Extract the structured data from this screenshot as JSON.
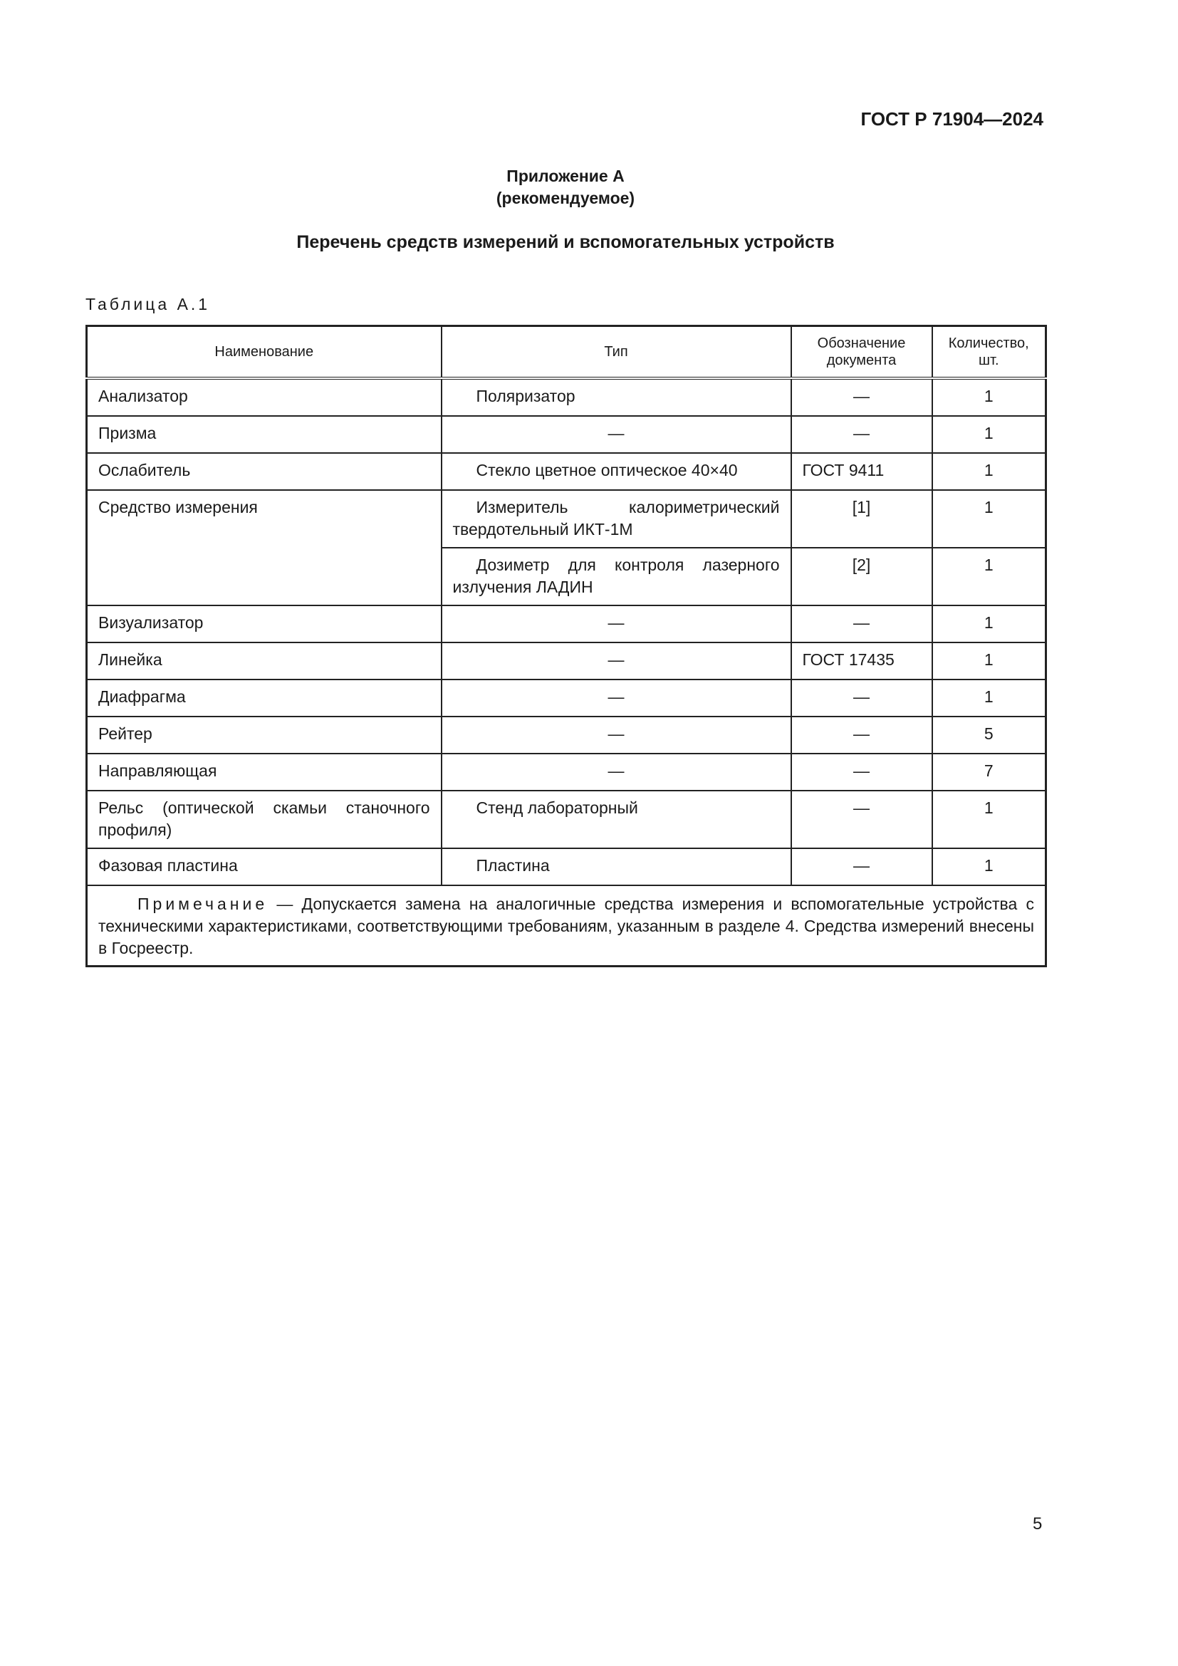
{
  "header": {
    "doc_id": "ГОСТ Р 71904—2024"
  },
  "appendix": {
    "title": "Приложение А",
    "status": "(рекомендуемое)"
  },
  "section_title": "Перечень средств измерений и вспомогательных устройств",
  "table": {
    "caption": "Таблица А.1",
    "columns": [
      "Наименование",
      "Тип",
      "Обозначение документа",
      "Количество, шт."
    ],
    "rows": [
      {
        "name": "Анализатор",
        "type": "Поляризатор",
        "doc": "—",
        "qty": "1"
      },
      {
        "name": "Призма",
        "type": "—",
        "doc": "—",
        "qty": "1"
      },
      {
        "name": "Ослабитель",
        "type": "Стекло цветное оптическое 40×40",
        "doc": "ГОСТ 9411",
        "qty": "1"
      },
      {
        "name": "Средство измерения",
        "type": "Измеритель калориметрический твердотельный ИКТ-1М",
        "doc": "[1]",
        "qty": "1"
      },
      {
        "name": "",
        "type": "Дозиметр для контроля лазерного излучения ЛАДИН",
        "doc": "[2]",
        "qty": "1"
      },
      {
        "name": "Визуализатор",
        "type": "—",
        "doc": "—",
        "qty": "1"
      },
      {
        "name": "Линейка",
        "type": "—",
        "doc": "ГОСТ 17435",
        "qty": "1"
      },
      {
        "name": "Диафрагма",
        "type": "—",
        "doc": "—",
        "qty": "1"
      },
      {
        "name": "Рейтер",
        "type": "—",
        "doc": "—",
        "qty": "5"
      },
      {
        "name": "Направляющая",
        "type": "—",
        "doc": "—",
        "qty": "7"
      },
      {
        "name": "Рельс (оптической скамьи станочного профиля)",
        "type": "Стенд лабораторный",
        "doc": "—",
        "qty": "1"
      },
      {
        "name": "Фазовая пластина",
        "type": "Пластина",
        "doc": "—",
        "qty": "1"
      }
    ],
    "note_label": "Примечание",
    "note_text": " — Допускается замена на аналогичные средства измерения и вспомогательные устройства с техническими характеристиками, соответствующими требованиям, указанным в разделе 4. Средства измере­ний внесены в Госреестр."
  },
  "page_number": "5"
}
